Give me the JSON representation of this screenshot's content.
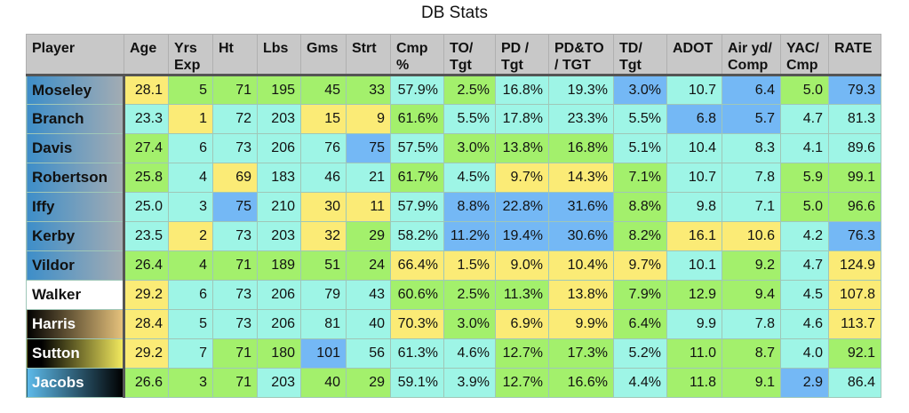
{
  "title": "DB Stats",
  "colors": {
    "Y": "#fbeb76",
    "G": "#a3f06c",
    "C": "#9ef5e6",
    "B": "#74b8f5"
  },
  "columns": [
    "Player",
    "Age",
    "Yrs Exp",
    "Ht",
    "Lbs",
    "Gms",
    "Strt",
    "Cmp %",
    "TO/ Tgt",
    "PD / Tgt",
    "PD&TO / TGT",
    "TD/ Tgt",
    "ADOT",
    "Air yd/ Comp",
    "YAC/ Cmp",
    "RATE"
  ],
  "rows": [
    {
      "player": "Moseley",
      "values": [
        "28.1",
        "5",
        "71",
        "195",
        "45",
        "33",
        "57.9%",
        "2.5%",
        "16.8%",
        "19.3%",
        "3.0%",
        "10.7",
        "6.4",
        "5.0",
        "79.3"
      ],
      "shades": "YGGGGGCGCCBCBGB"
    },
    {
      "player": "Branch",
      "values": [
        "23.3",
        "1",
        "72",
        "203",
        "15",
        "9",
        "61.6%",
        "5.5%",
        "17.8%",
        "23.3%",
        "5.5%",
        "6.8",
        "5.7",
        "4.7",
        "81.3"
      ],
      "shades": "CYCCYYGCCCCBBCC"
    },
    {
      "player": "Davis",
      "values": [
        "27.4",
        "6",
        "73",
        "206",
        "76",
        "75",
        "57.5%",
        "3.0%",
        "13.8%",
        "16.8%",
        "5.1%",
        "10.4",
        "8.3",
        "4.1",
        "89.6"
      ],
      "shades": "GCCCCBCGGGCCCCC"
    },
    {
      "player": "Robertson",
      "values": [
        "25.8",
        "4",
        "69",
        "183",
        "46",
        "21",
        "61.7%",
        "4.5%",
        "9.7%",
        "14.3%",
        "7.1%",
        "10.7",
        "7.8",
        "5.9",
        "99.1"
      ],
      "shades": "GCYCCCGCYYGCCGG"
    },
    {
      "player": "Iffy",
      "values": [
        "25.0",
        "3",
        "75",
        "210",
        "30",
        "11",
        "57.9%",
        "8.8%",
        "22.8%",
        "31.6%",
        "8.8%",
        "9.8",
        "7.1",
        "5.0",
        "96.6"
      ],
      "shades": "CCBCYYCBBBGCCGG"
    },
    {
      "player": "Kerby",
      "values": [
        "23.5",
        "2",
        "73",
        "203",
        "32",
        "29",
        "58.2%",
        "11.2%",
        "19.4%",
        "30.6%",
        "8.2%",
        "16.1",
        "10.6",
        "4.2",
        "76.3"
      ],
      "shades": "CYCCYGCBBBGYYCB"
    },
    {
      "player": "Vildor",
      "values": [
        "26.4",
        "4",
        "71",
        "189",
        "51",
        "24",
        "66.4%",
        "1.5%",
        "9.0%",
        "10.4%",
        "9.7%",
        "10.1",
        "9.2",
        "4.7",
        "124.9"
      ],
      "shades": "GGGGGGYYYYYCGCY"
    },
    {
      "player": "Walker",
      "values": [
        "29.2",
        "6",
        "73",
        "206",
        "79",
        "43",
        "60.6%",
        "2.5%",
        "11.3%",
        "13.8%",
        "7.9%",
        "12.9",
        "9.4",
        "4.5",
        "107.8"
      ],
      "shades": "YCCCCCGGGYGGGCY"
    },
    {
      "player": "Harris",
      "values": [
        "28.4",
        "5",
        "73",
        "206",
        "81",
        "40",
        "70.3%",
        "3.0%",
        "6.9%",
        "9.9%",
        "6.4%",
        "9.9",
        "7.8",
        "4.6",
        "113.7"
      ],
      "shades": "YCCCCCYGYYGCCCY"
    },
    {
      "player": "Sutton",
      "values": [
        "29.2",
        "7",
        "71",
        "180",
        "101",
        "56",
        "61.3%",
        "4.6%",
        "12.7%",
        "17.3%",
        "5.2%",
        "11.0",
        "8.7",
        "4.0",
        "92.1"
      ],
      "shades": "YCGGBCCCGGCGGCG"
    },
    {
      "player": "Jacobs",
      "values": [
        "26.6",
        "3",
        "71",
        "203",
        "40",
        "29",
        "59.1%",
        "3.9%",
        "12.7%",
        "16.6%",
        "4.4%",
        "11.8",
        "9.1",
        "2.9",
        "86.4"
      ],
      "shades": "GGGCGGCCGGCGGBC"
    }
  ]
}
